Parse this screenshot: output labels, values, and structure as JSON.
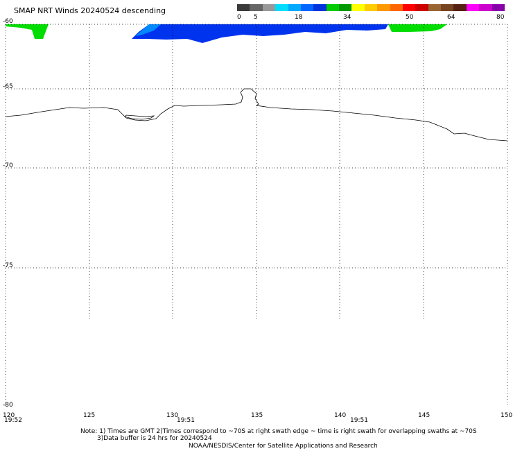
{
  "title": "SMAP NRT Winds  20240524 descending",
  "colorbar": {
    "ticks": [
      "0",
      "5",
      "18",
      "34",
      "50",
      "64",
      "80"
    ],
    "segments": [
      "#3a3a3a",
      "#666666",
      "#999999",
      "#00ddff",
      "#00aaff",
      "#0066ff",
      "#0033dd",
      "#00cc00",
      "#009900",
      "#ffff00",
      "#ffcc00",
      "#ff9900",
      "#ff6600",
      "#ff0000",
      "#cc0000",
      "#996633",
      "#774422",
      "#552211",
      "#ff00ff",
      "#cc00cc",
      "#8800aa"
    ]
  },
  "map": {
    "lon_ticks": [
      "120",
      "125",
      "130",
      "135",
      "140",
      "145",
      "150"
    ],
    "lat_ticks": [
      "-60",
      "-65",
      "-70",
      "-75",
      "-80"
    ],
    "times": [
      "19:52",
      "19:51",
      "19:51"
    ]
  },
  "notes": {
    "line1": "Note: 1) Times are GMT 2)Times correspond to ~70S at right swath edge ~ time is right swath for overlapping swaths at ~70S",
    "line2": "3)Data buffer is 24 hrs for 20240524",
    "line3": "NOAA/NESDIS/Center for Satellite Applications and Research"
  }
}
